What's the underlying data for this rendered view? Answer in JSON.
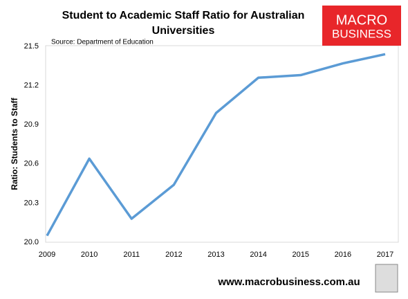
{
  "chart_data": {
    "type": "line",
    "title": "Student to Academic Staff Ratio for Australian Universities",
    "subtitle": "Source: Department of Education",
    "y_label": "Ratio: Students to Staff",
    "x": [
      2009,
      2010,
      2011,
      2012,
      2013,
      2014,
      2015,
      2016,
      2017
    ],
    "series": [
      {
        "name": "Ratio",
        "color": "#5b9bd5",
        "values": [
          20.05,
          20.64,
          20.18,
          20.44,
          20.99,
          21.26,
          21.28,
          21.37,
          21.44
        ]
      }
    ],
    "xlim": [
      2009,
      2017
    ],
    "xticks": [
      2009,
      2010,
      2011,
      2012,
      2013,
      2014,
      2015,
      2016,
      2017
    ],
    "ylim": [
      20,
      21.5
    ],
    "yticks": [
      {
        "value": 20,
        "label": "20.0"
      },
      20.3,
      20.6,
      20.9,
      21.2,
      21.5
    ],
    "grid": false
  },
  "logo": {
    "line1": "MACRO",
    "line2": "BUSINESS"
  },
  "footer": "www.macrobusiness.com.au"
}
